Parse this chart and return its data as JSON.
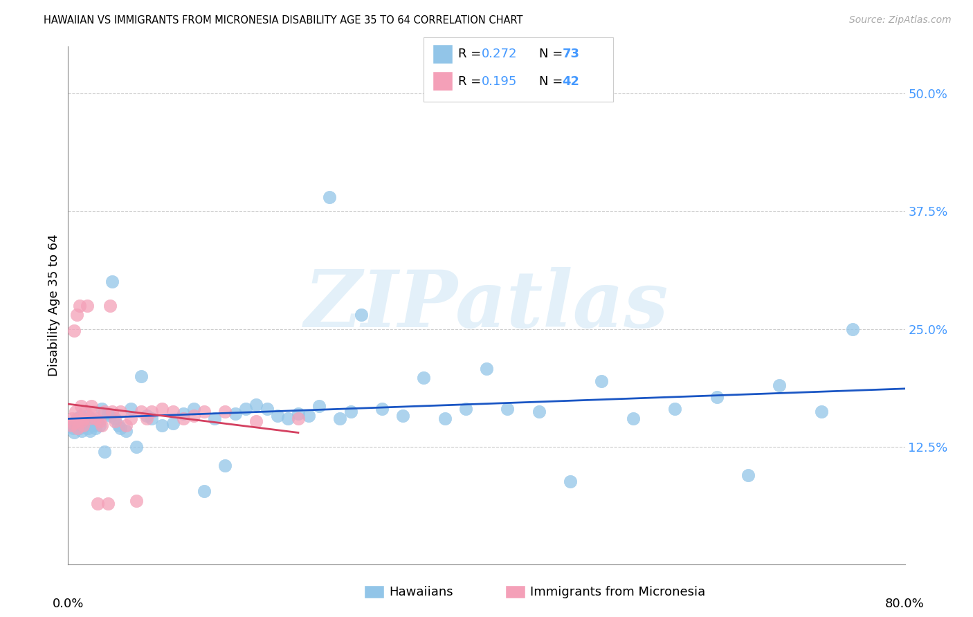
{
  "title": "HAWAIIAN VS IMMIGRANTS FROM MICRONESIA DISABILITY AGE 35 TO 64 CORRELATION CHART",
  "source": "Source: ZipAtlas.com",
  "ylabel": "Disability Age 35 to 64",
  "yticks_labels": [
    "12.5%",
    "25.0%",
    "37.5%",
    "50.0%"
  ],
  "ytick_vals": [
    0.125,
    0.25,
    0.375,
    0.5
  ],
  "xlim": [
    0.0,
    0.8
  ],
  "ylim": [
    0.0,
    0.55
  ],
  "watermark": "ZIPatlas",
  "r_hawaiian": "0.272",
  "n_hawaiian": "73",
  "r_micronesia": "0.195",
  "n_micronesia": "42",
  "color_hawaiian": "#92C5E8",
  "color_micronesia": "#F4A0B8",
  "trendline_hawaiian": "#1A56C4",
  "trendline_micronesia": "#D44060",
  "label_hawaiian": "Hawaiians",
  "label_micronesia": "Immigrants from Micronesia",
  "tick_color": "#4499FF",
  "hawaiians_x": [
    0.003,
    0.005,
    0.006,
    0.008,
    0.009,
    0.01,
    0.011,
    0.012,
    0.013,
    0.014,
    0.015,
    0.016,
    0.017,
    0.018,
    0.019,
    0.02,
    0.021,
    0.022,
    0.024,
    0.026,
    0.028,
    0.03,
    0.032,
    0.035,
    0.038,
    0.04,
    0.042,
    0.045,
    0.048,
    0.05,
    0.055,
    0.06,
    0.065,
    0.07,
    0.075,
    0.08,
    0.09,
    0.1,
    0.11,
    0.12,
    0.13,
    0.14,
    0.15,
    0.16,
    0.17,
    0.18,
    0.19,
    0.2,
    0.21,
    0.22,
    0.23,
    0.24,
    0.25,
    0.26,
    0.27,
    0.28,
    0.3,
    0.32,
    0.34,
    0.36,
    0.38,
    0.4,
    0.42,
    0.45,
    0.48,
    0.51,
    0.54,
    0.58,
    0.62,
    0.65,
    0.68,
    0.72,
    0.75
  ],
  "hawaiians_y": [
    0.15,
    0.145,
    0.14,
    0.155,
    0.148,
    0.152,
    0.145,
    0.158,
    0.142,
    0.15,
    0.155,
    0.148,
    0.152,
    0.158,
    0.145,
    0.15,
    0.142,
    0.155,
    0.148,
    0.145,
    0.152,
    0.148,
    0.165,
    0.12,
    0.16,
    0.158,
    0.3,
    0.155,
    0.148,
    0.145,
    0.142,
    0.165,
    0.125,
    0.2,
    0.158,
    0.155,
    0.148,
    0.15,
    0.16,
    0.165,
    0.078,
    0.155,
    0.105,
    0.16,
    0.165,
    0.17,
    0.165,
    0.158,
    0.155,
    0.16,
    0.158,
    0.168,
    0.39,
    0.155,
    0.162,
    0.265,
    0.165,
    0.158,
    0.198,
    0.155,
    0.165,
    0.208,
    0.165,
    0.162,
    0.088,
    0.195,
    0.155,
    0.165,
    0.178,
    0.095,
    0.19,
    0.162,
    0.25
  ],
  "micronesia_x": [
    0.003,
    0.004,
    0.005,
    0.006,
    0.007,
    0.008,
    0.009,
    0.01,
    0.011,
    0.012,
    0.013,
    0.014,
    0.015,
    0.016,
    0.018,
    0.02,
    0.022,
    0.024,
    0.026,
    0.028,
    0.03,
    0.032,
    0.035,
    0.038,
    0.04,
    0.042,
    0.045,
    0.05,
    0.055,
    0.06,
    0.065,
    0.07,
    0.075,
    0.08,
    0.09,
    0.1,
    0.11,
    0.12,
    0.13,
    0.15,
    0.18,
    0.22
  ],
  "micronesia_y": [
    0.148,
    0.155,
    0.15,
    0.248,
    0.162,
    0.265,
    0.145,
    0.155,
    0.275,
    0.168,
    0.152,
    0.148,
    0.155,
    0.162,
    0.275,
    0.155,
    0.168,
    0.162,
    0.155,
    0.065,
    0.152,
    0.148,
    0.162,
    0.065,
    0.275,
    0.162,
    0.152,
    0.162,
    0.148,
    0.155,
    0.068,
    0.162,
    0.155,
    0.162,
    0.165,
    0.162,
    0.155,
    0.158,
    0.162,
    0.162,
    0.152,
    0.155
  ]
}
